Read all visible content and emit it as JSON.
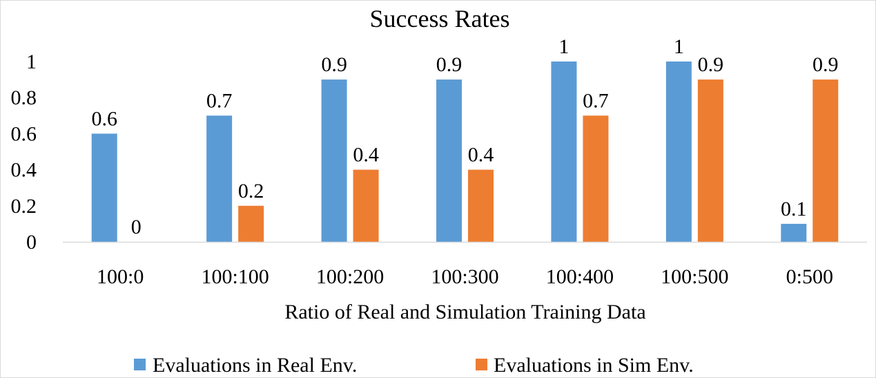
{
  "chart_data": {
    "type": "bar",
    "title": "Success Rates",
    "xlabel": "Ratio of Real and Simulation Training Data",
    "ylabel": "",
    "ylim": [
      0,
      1
    ],
    "yticks": [
      "0",
      "0.2",
      "0.4",
      "0.6",
      "0.8",
      "1"
    ],
    "categories": [
      "100:0",
      "100:100",
      "100:200",
      "100:300",
      "100:400",
      "100:500",
      "0:500"
    ],
    "series": [
      {
        "name": "Evaluations in Real Env.",
        "color": "#5B9BD5",
        "values": [
          0.6,
          0.7,
          0.9,
          0.9,
          1,
          1,
          0.1
        ],
        "labels": [
          "0.6",
          "0.7",
          "0.9",
          "0.9",
          "1",
          "1",
          "0.1"
        ]
      },
      {
        "name": "Evaluations in Sim Env.",
        "color": "#ED7D31",
        "values": [
          0,
          0.2,
          0.4,
          0.4,
          0.7,
          0.9,
          0.9
        ],
        "labels": [
          "0",
          "0.2",
          "0.4",
          "0.4",
          "0.7",
          "0.9",
          "0.9"
        ]
      }
    ],
    "grid": false,
    "legend_position": "bottom",
    "axis_color": "#d9d9d9"
  }
}
